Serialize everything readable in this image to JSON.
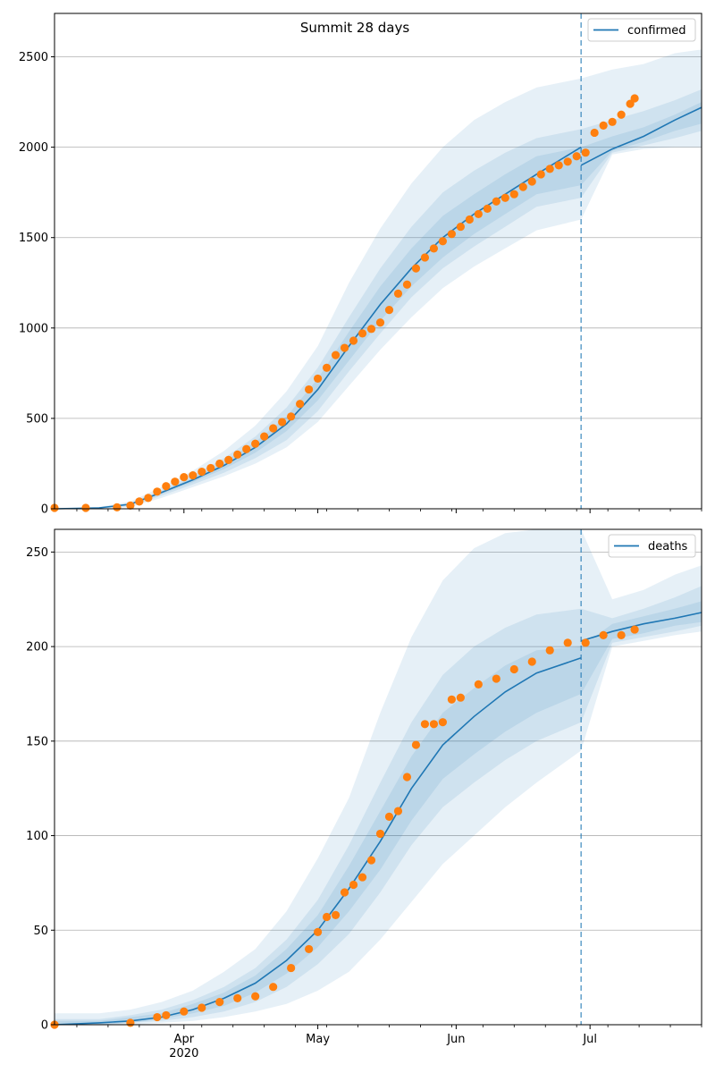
{
  "figure_title": "Summit 28 days",
  "chart_data": [
    {
      "type": "line",
      "title": "",
      "legend": {
        "label": "confirmed",
        "placement": "upper right"
      },
      "ylim": [
        0,
        2740
      ],
      "yticks": [
        0,
        500,
        1000,
        1500,
        2000,
        2500
      ],
      "xlim": [
        "2020-03-03",
        "2020-07-26"
      ],
      "cutoff_date": "2020-06-29",
      "grid": "horizontal",
      "colors": {
        "model": "#1f77b4",
        "observed": "#ff7f0e"
      },
      "model_line": {
        "dates": [
          "2020-03-03",
          "2020-03-13",
          "2020-03-20",
          "2020-03-27",
          "2020-04-03",
          "2020-04-10",
          "2020-04-17",
          "2020-04-24",
          "2020-05-01",
          "2020-05-08",
          "2020-05-15",
          "2020-05-22",
          "2020-05-29",
          "2020-06-05",
          "2020-06-12",
          "2020-06-19",
          "2020-06-29",
          "2020-07-06",
          "2020-07-13",
          "2020-07-20",
          "2020-07-26"
        ],
        "values": [
          0,
          5,
          25,
          90,
          160,
          240,
          340,
          470,
          660,
          900,
          1130,
          1330,
          1500,
          1630,
          1740,
          1850,
          1900,
          1990,
          2060,
          2150,
          2220
        ]
      },
      "model_line_pre_cutoff_end": 2000,
      "bands": [
        {
          "upper": [
            0,
            10,
            40,
            120,
            210,
            320,
            460,
            650,
            900,
            1250,
            1550,
            1800,
            2000,
            2150,
            2250,
            2330,
            2380,
            2430,
            2460,
            2520,
            2540
          ],
          "lower": [
            0,
            0,
            10,
            60,
            120,
            180,
            250,
            340,
            480,
            680,
            880,
            1060,
            1220,
            1340,
            1440,
            1540,
            1600,
            1960,
            1990,
            2000,
            2000
          ]
        },
        {
          "upper": [
            0,
            8,
            32,
            105,
            185,
            280,
            400,
            560,
            780,
            1060,
            1330,
            1560,
            1750,
            1870,
            1970,
            2050,
            2100,
            2150,
            2200,
            2260,
            2320
          ],
          "lower": [
            0,
            2,
            15,
            72,
            135,
            200,
            280,
            380,
            540,
            760,
            970,
            1170,
            1330,
            1450,
            1560,
            1670,
            1720,
            1970,
            2010,
            2050,
            2090
          ]
        },
        {
          "upper": [
            0,
            6,
            28,
            97,
            172,
            260,
            370,
            510,
            720,
            980,
            1230,
            1440,
            1620,
            1740,
            1850,
            1950,
            2000,
            2060,
            2110,
            2180,
            2250
          ],
          "lower": [
            0,
            3,
            20,
            82,
            147,
            220,
            310,
            430,
            600,
            820,
            1040,
            1230,
            1390,
            1520,
            1630,
            1740,
            1790,
            1980,
            2030,
            2090,
            2130
          ]
        }
      ],
      "observed": {
        "dates": [
          "2020-03-03",
          "2020-03-10",
          "2020-03-17",
          "2020-03-20",
          "2020-03-22",
          "2020-03-24",
          "2020-03-26",
          "2020-03-28",
          "2020-03-30",
          "2020-04-01",
          "2020-04-03",
          "2020-04-05",
          "2020-04-07",
          "2020-04-09",
          "2020-04-11",
          "2020-04-13",
          "2020-04-15",
          "2020-04-17",
          "2020-04-19",
          "2020-04-21",
          "2020-04-23",
          "2020-04-25",
          "2020-04-27",
          "2020-04-29",
          "2020-05-01",
          "2020-05-03",
          "2020-05-05",
          "2020-05-07",
          "2020-05-09",
          "2020-05-11",
          "2020-05-13",
          "2020-05-15",
          "2020-05-17",
          "2020-05-19",
          "2020-05-21",
          "2020-05-23",
          "2020-05-25",
          "2020-05-27",
          "2020-05-29",
          "2020-05-31",
          "2020-06-02",
          "2020-06-04",
          "2020-06-06",
          "2020-06-08",
          "2020-06-10",
          "2020-06-12",
          "2020-06-14",
          "2020-06-16",
          "2020-06-18",
          "2020-06-20",
          "2020-06-22",
          "2020-06-24",
          "2020-06-26",
          "2020-06-28",
          "2020-06-30",
          "2020-07-02",
          "2020-07-04",
          "2020-07-06",
          "2020-07-08",
          "2020-07-10",
          "2020-07-11"
        ],
        "values": [
          5,
          5,
          8,
          18,
          40,
          60,
          95,
          125,
          150,
          175,
          185,
          205,
          225,
          250,
          270,
          300,
          330,
          360,
          400,
          445,
          480,
          510,
          580,
          660,
          720,
          780,
          850,
          890,
          930,
          970,
          995,
          1030,
          1100,
          1190,
          1240,
          1330,
          1390,
          1440,
          1480,
          1520,
          1560,
          1600,
          1630,
          1660,
          1700,
          1720,
          1740,
          1780,
          1810,
          1850,
          1880,
          1900,
          1920,
          1950,
          1970,
          2080,
          2120,
          2140,
          2180,
          2240,
          2270
        ]
      }
    },
    {
      "type": "line",
      "title": "",
      "legend": {
        "label": "deaths",
        "placement": "upper right"
      },
      "ylim": [
        0,
        262
      ],
      "yticks": [
        0,
        50,
        100,
        150,
        200,
        250
      ],
      "xlim": [
        "2020-03-03",
        "2020-07-26"
      ],
      "cutoff_date": "2020-06-29",
      "grid": "horizontal",
      "colors": {
        "model": "#1f77b4",
        "observed": "#ff7f0e"
      },
      "model_line": {
        "dates": [
          "2020-03-03",
          "2020-03-13",
          "2020-03-20",
          "2020-03-27",
          "2020-04-03",
          "2020-04-10",
          "2020-04-17",
          "2020-04-24",
          "2020-05-01",
          "2020-05-08",
          "2020-05-15",
          "2020-05-22",
          "2020-05-29",
          "2020-06-05",
          "2020-06-12",
          "2020-06-19",
          "2020-06-29",
          "2020-07-06",
          "2020-07-13",
          "2020-07-20",
          "2020-07-26"
        ],
        "values": [
          0,
          1,
          2,
          4,
          8,
          14,
          22,
          34,
          50,
          72,
          97,
          125,
          148,
          163,
          176,
          186,
          203,
          208,
          212,
          215,
          218
        ]
      },
      "model_line_pre_cutoff_end": 194,
      "bands": [
        {
          "upper": [
            6,
            6,
            8,
            12,
            18,
            28,
            40,
            60,
            88,
            120,
            165,
            205,
            235,
            252,
            260,
            262,
            262,
            225,
            230,
            238,
            243
          ],
          "lower": [
            0,
            0,
            0,
            1,
            2,
            4,
            7,
            11,
            18,
            28,
            45,
            65,
            85,
            100,
            115,
            128,
            145,
            200,
            203,
            206,
            208
          ]
        },
        {
          "upper": [
            3,
            3,
            5,
            8,
            13,
            20,
            30,
            45,
            66,
            95,
            128,
            160,
            185,
            200,
            210,
            217,
            220,
            215,
            220,
            226,
            232
          ],
          "lower": [
            0,
            0,
            1,
            2,
            4,
            7,
            12,
            20,
            32,
            48,
            70,
            95,
            115,
            128,
            140,
            150,
            160,
            202,
            205,
            208,
            211
          ]
        },
        {
          "upper": [
            2,
            2,
            4,
            6,
            11,
            17,
            26,
            40,
            58,
            84,
            113,
            142,
            165,
            178,
            190,
            198,
            200,
            212,
            216,
            220,
            224
          ],
          "lower": [
            0,
            0,
            1,
            3,
            6,
            10,
            17,
            27,
            41,
            60,
            82,
            108,
            130,
            143,
            155,
            165,
            175,
            204,
            207,
            211,
            213
          ]
        }
      ],
      "observed": {
        "dates": [
          "2020-03-03",
          "2020-03-20",
          "2020-03-26",
          "2020-03-28",
          "2020-04-01",
          "2020-04-05",
          "2020-04-09",
          "2020-04-13",
          "2020-04-17",
          "2020-04-21",
          "2020-04-25",
          "2020-04-29",
          "2020-05-01",
          "2020-05-03",
          "2020-05-05",
          "2020-05-07",
          "2020-05-09",
          "2020-05-11",
          "2020-05-13",
          "2020-05-15",
          "2020-05-17",
          "2020-05-19",
          "2020-05-21",
          "2020-05-23",
          "2020-05-25",
          "2020-05-27",
          "2020-05-29",
          "2020-05-31",
          "2020-06-02",
          "2020-06-06",
          "2020-06-10",
          "2020-06-14",
          "2020-06-18",
          "2020-06-22",
          "2020-06-26",
          "2020-06-30",
          "2020-07-04",
          "2020-07-08",
          "2020-07-11"
        ],
        "values": [
          0,
          1,
          4,
          5,
          7,
          9,
          12,
          14,
          15,
          20,
          30,
          40,
          49,
          57,
          58,
          70,
          74,
          78,
          87,
          101,
          110,
          113,
          131,
          148,
          159,
          159,
          160,
          172,
          173,
          180,
          183,
          188,
          192,
          198,
          202,
          202,
          206,
          206,
          209
        ]
      }
    }
  ],
  "xaxis": {
    "major_ticks": [
      {
        "date": "2020-04-01",
        "label": "Apr"
      },
      {
        "date": "2020-05-01",
        "label": "May"
      },
      {
        "date": "2020-06-01",
        "label": "Jun"
      },
      {
        "date": "2020-07-01",
        "label": "Jul"
      }
    ],
    "year_label": "2020",
    "minor_tick_dates": [
      "2020-03-08",
      "2020-03-15",
      "2020-03-22",
      "2020-03-29",
      "2020-04-05",
      "2020-04-12",
      "2020-04-19",
      "2020-04-26",
      "2020-05-03",
      "2020-05-10",
      "2020-05-17",
      "2020-05-24",
      "2020-05-31",
      "2020-06-07",
      "2020-06-14",
      "2020-06-21",
      "2020-06-28",
      "2020-07-05",
      "2020-07-12",
      "2020-07-19",
      "2020-07-26"
    ]
  }
}
